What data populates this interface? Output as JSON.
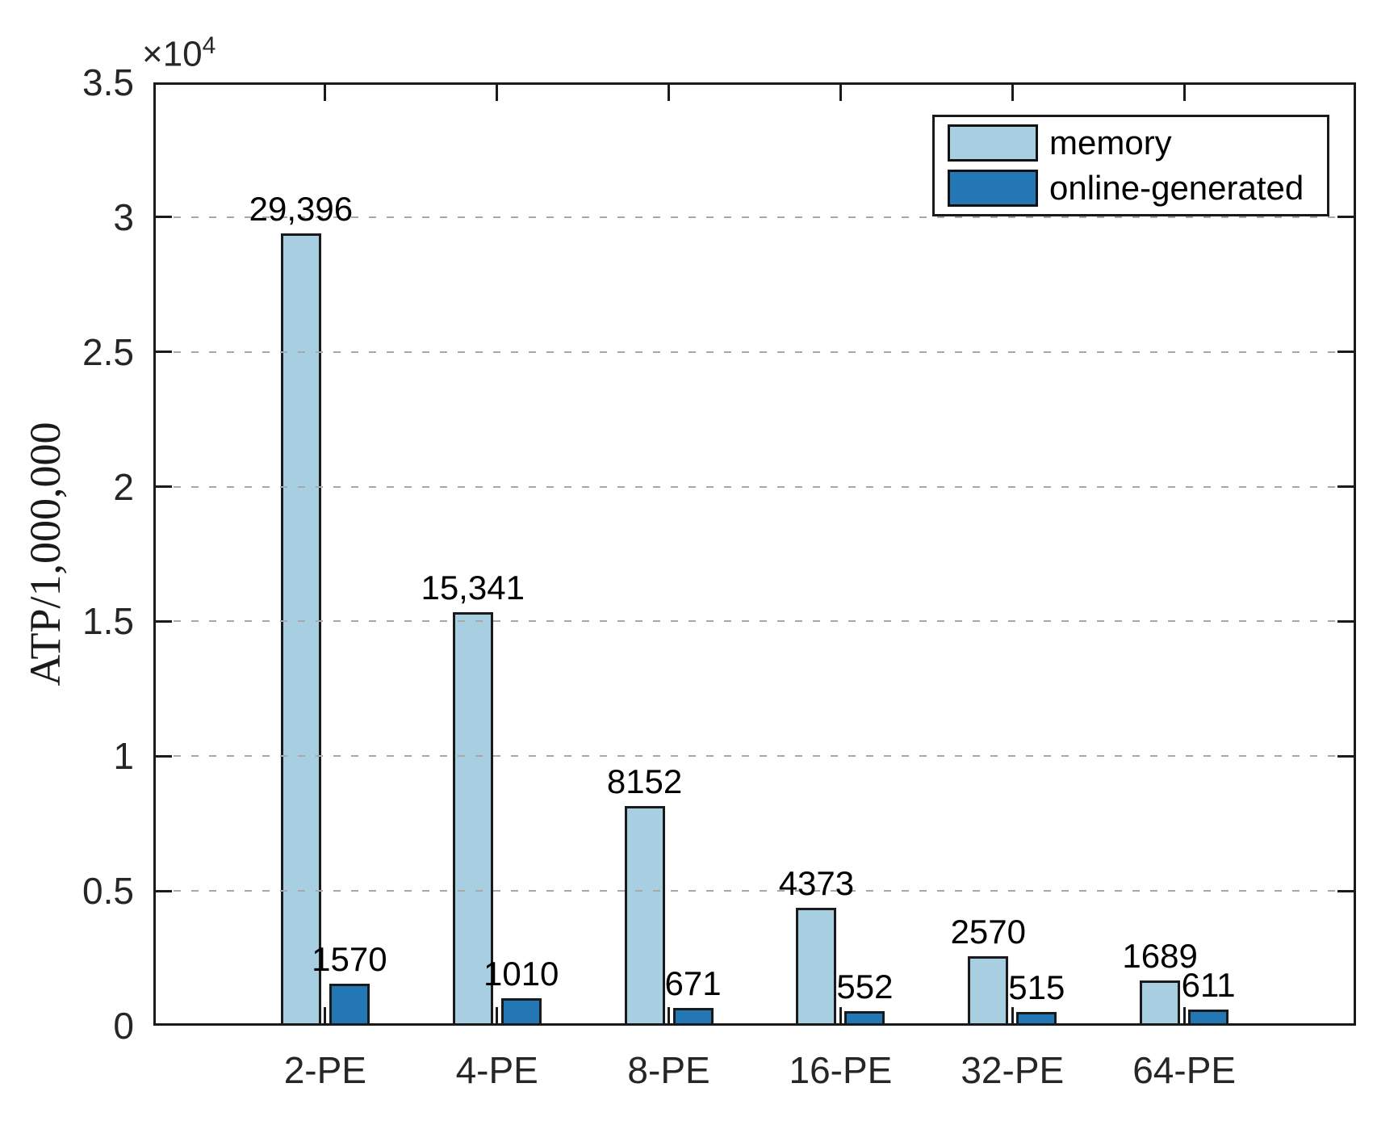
{
  "chart_data": {
    "type": "bar",
    "title": "",
    "categories": [
      "2-PE",
      "4-PE",
      "8-PE",
      "16-PE",
      "32-PE",
      "64-PE"
    ],
    "series": [
      {
        "name": "memory",
        "color": "#A8CEE2",
        "values": [
          29396,
          15341,
          8152,
          4373,
          2570,
          1689
        ],
        "value_labels": [
          "29,396",
          "15,341",
          "8152",
          "4373",
          "2570",
          "1689"
        ]
      },
      {
        "name": "online-generated",
        "color": "#2277B4",
        "values": [
          1570,
          1010,
          671,
          552,
          515,
          611
        ],
        "value_labels": [
          "1570",
          "1010",
          "671",
          "552",
          "515",
          "611"
        ]
      }
    ],
    "xlabel": "",
    "ylabel": "ATP/1,000,000",
    "y_offset_text": "×10",
    "y_offset_exponent": "4",
    "ylim": [
      0,
      35000
    ],
    "ytick_step": 5000,
    "ytick_labels": [
      "0",
      "0.5",
      "1",
      "1.5",
      "2",
      "2.5",
      "3",
      "3.5"
    ],
    "grid": "horizontal-dashed",
    "grid_on_top_of_bars": true,
    "legend_position": "top-right",
    "colors": {
      "axis": "#1a1a1a",
      "grid": "#a8a8a8",
      "background": "#ffffff",
      "memory_fill": "#A8CEE2",
      "online_generated_fill": "#2277B4"
    }
  }
}
